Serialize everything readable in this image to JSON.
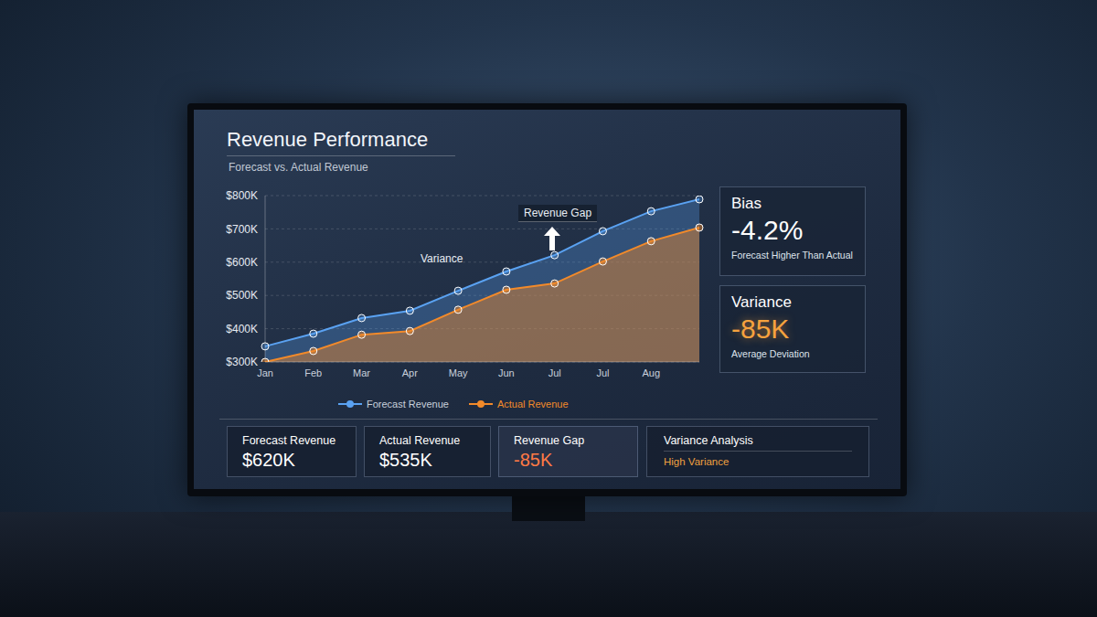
{
  "chart_data": {
    "type": "line",
    "title": "Revenue Performance",
    "subtitle": "Forecast vs. Actual Revenue",
    "annotations": [
      "Variance",
      "Revenue Gap"
    ],
    "categories": [
      "Jan",
      "Feb",
      "Mar",
      "Apr",
      "May",
      "Jun",
      "Jul",
      "Jul",
      "Aug",
      null
    ],
    "series": [
      {
        "name": "Forecast Revenue",
        "color": "#5aa2f2",
        "values": [
          347000,
          385000,
          432000,
          454000,
          514000,
          572000,
          621000,
          693000,
          753000,
          789000
        ]
      },
      {
        "name": "Actual Revenue",
        "color": "#f28a2a",
        "values": [
          300000,
          333000,
          382000,
          393000,
          457000,
          517000,
          536000,
          602000,
          663000,
          704000
        ]
      }
    ],
    "ylim": [
      300000,
      800000
    ],
    "yticks": [
      {
        "value": 300000,
        "label": "$300K"
      },
      {
        "value": 400000,
        "label": "$400K"
      },
      {
        "value": 500000,
        "label": "$500K"
      },
      {
        "value": 600000,
        "label": "$600K"
      },
      {
        "value": 700000,
        "label": "$700K"
      },
      {
        "value": 800000,
        "label": "$800K"
      }
    ],
    "grid": true,
    "legend": "bottom",
    "marker": "circle"
  },
  "kpis": [
    {
      "title": "Bias",
      "value": "-4.2%",
      "note": "Forecast Higher Than Actual"
    },
    {
      "title": "Variance",
      "value": "-85K",
      "note": "Average Deviation"
    }
  ],
  "summary": [
    {
      "title": "Forecast Revenue",
      "value": "$620K"
    },
    {
      "title": "Actual Revenue",
      "value": "$535K"
    },
    {
      "title": "Revenue Gap",
      "value": "-85K"
    },
    {
      "title": "Variance Analysis",
      "value": "High Variance"
    }
  ]
}
